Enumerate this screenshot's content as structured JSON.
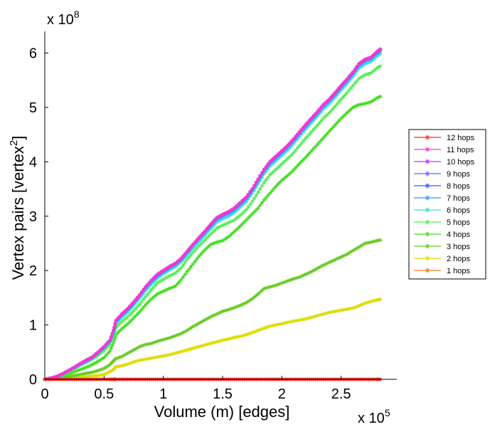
{
  "chart_data": {
    "type": "line",
    "xlabel": "Volume (m) [edges]",
    "ylabel": "Vertex pairs [vertex²]",
    "ylabel_base": "Vertex pairs [vertex",
    "ylabel_sup": "2",
    "ylabel_close": "]",
    "x_multiplier": "x 10",
    "x_multiplier_exp": "5",
    "y_multiplier": "x 10",
    "y_multiplier_exp": "8",
    "xlim": [
      0,
      3.0
    ],
    "ylim": [
      0,
      6.4
    ],
    "x_ticks": [
      0,
      0.5,
      1,
      1.5,
      2,
      2.5
    ],
    "x_tick_labels": [
      "0",
      "0.5",
      "1",
      "1.5",
      "2",
      "2.5"
    ],
    "y_ticks": [
      0,
      1,
      2,
      3,
      4,
      5,
      6
    ],
    "y_tick_labels": [
      "0",
      "1",
      "2",
      "3",
      "4",
      "5",
      "6"
    ],
    "x": [
      0,
      0.05,
      0.1,
      0.15,
      0.2,
      0.25,
      0.3,
      0.35,
      0.4,
      0.45,
      0.5,
      0.55,
      0.58,
      0.6,
      0.65,
      0.7,
      0.75,
      0.8,
      0.85,
      0.9,
      0.95,
      1.0,
      1.05,
      1.1,
      1.15,
      1.2,
      1.25,
      1.3,
      1.35,
      1.4,
      1.45,
      1.5,
      1.55,
      1.6,
      1.65,
      1.7,
      1.75,
      1.8,
      1.85,
      1.9,
      1.95,
      2.0,
      2.05,
      2.1,
      2.15,
      2.2,
      2.25,
      2.3,
      2.35,
      2.4,
      2.45,
      2.5,
      2.55,
      2.6,
      2.65,
      2.7,
      2.75,
      2.8,
      2.83
    ],
    "series": [
      {
        "name": "12 hops",
        "color": "#ff2a2a",
        "values": [
          0,
          0,
          0,
          0,
          0,
          0,
          0,
          0,
          0,
          0,
          0,
          0,
          0,
          0,
          0,
          0,
          0,
          0,
          0,
          0,
          0,
          0,
          0,
          0,
          0,
          0,
          0,
          0,
          0,
          0,
          0,
          0,
          0,
          0,
          0,
          0,
          0,
          0,
          0,
          0,
          0,
          0,
          0,
          0,
          0,
          0,
          0,
          0,
          0,
          0,
          0,
          0,
          0,
          0,
          0,
          0,
          0,
          0,
          0
        ]
      },
      {
        "name": "11 hops",
        "color": "#ff33cc",
        "values": [
          0,
          0.02,
          0.05,
          0.1,
          0.16,
          0.22,
          0.29,
          0.35,
          0.41,
          0.5,
          0.6,
          0.72,
          0.9,
          1.08,
          1.2,
          1.3,
          1.42,
          1.55,
          1.7,
          1.82,
          1.93,
          2.0,
          2.07,
          2.13,
          2.22,
          2.35,
          2.48,
          2.6,
          2.72,
          2.85,
          2.97,
          3.03,
          3.08,
          3.15,
          3.25,
          3.35,
          3.5,
          3.68,
          3.86,
          4.0,
          4.1,
          4.2,
          4.3,
          4.42,
          4.55,
          4.68,
          4.8,
          4.92,
          5.05,
          5.15,
          5.27,
          5.4,
          5.52,
          5.65,
          5.8,
          5.88,
          5.92,
          6.02,
          6.07
        ]
      },
      {
        "name": "10 hops",
        "color": "#bb33ff",
        "values": [
          0,
          0.02,
          0.05,
          0.1,
          0.16,
          0.22,
          0.29,
          0.35,
          0.41,
          0.5,
          0.6,
          0.72,
          0.9,
          1.08,
          1.2,
          1.3,
          1.42,
          1.55,
          1.7,
          1.82,
          1.93,
          2.0,
          2.07,
          2.13,
          2.22,
          2.35,
          2.48,
          2.6,
          2.72,
          2.85,
          2.97,
          3.03,
          3.08,
          3.15,
          3.25,
          3.35,
          3.5,
          3.68,
          3.86,
          4.0,
          4.1,
          4.2,
          4.3,
          4.42,
          4.55,
          4.68,
          4.8,
          4.92,
          5.05,
          5.15,
          5.27,
          5.4,
          5.52,
          5.65,
          5.8,
          5.88,
          5.92,
          6.02,
          6.07
        ]
      },
      {
        "name": "9 hops",
        "color": "#6666ff",
        "values": [
          0,
          0.02,
          0.05,
          0.1,
          0.16,
          0.22,
          0.29,
          0.35,
          0.41,
          0.5,
          0.6,
          0.72,
          0.9,
          1.08,
          1.2,
          1.3,
          1.42,
          1.55,
          1.7,
          1.82,
          1.93,
          2.0,
          2.07,
          2.13,
          2.22,
          2.35,
          2.48,
          2.6,
          2.72,
          2.85,
          2.97,
          3.03,
          3.08,
          3.15,
          3.25,
          3.35,
          3.5,
          3.68,
          3.86,
          4.0,
          4.1,
          4.2,
          4.3,
          4.42,
          4.55,
          4.68,
          4.8,
          4.92,
          5.05,
          5.15,
          5.27,
          5.4,
          5.52,
          5.65,
          5.8,
          5.88,
          5.92,
          6.02,
          6.07
        ]
      },
      {
        "name": "8 hops",
        "color": "#3355ff",
        "values": [
          0,
          0.02,
          0.05,
          0.1,
          0.16,
          0.22,
          0.29,
          0.35,
          0.41,
          0.5,
          0.6,
          0.72,
          0.9,
          1.08,
          1.2,
          1.3,
          1.42,
          1.55,
          1.7,
          1.82,
          1.93,
          2.0,
          2.07,
          2.13,
          2.22,
          2.35,
          2.48,
          2.6,
          2.72,
          2.85,
          2.97,
          3.03,
          3.08,
          3.15,
          3.25,
          3.35,
          3.5,
          3.68,
          3.86,
          4.0,
          4.1,
          4.2,
          4.3,
          4.42,
          4.55,
          4.68,
          4.8,
          4.92,
          5.05,
          5.15,
          5.27,
          5.4,
          5.52,
          5.65,
          5.8,
          5.88,
          5.92,
          6.02,
          6.07
        ]
      },
      {
        "name": "7 hops",
        "color": "#3399ff",
        "values": [
          0,
          0.02,
          0.05,
          0.1,
          0.16,
          0.22,
          0.28,
          0.34,
          0.4,
          0.49,
          0.59,
          0.71,
          0.88,
          1.06,
          1.18,
          1.28,
          1.4,
          1.53,
          1.68,
          1.8,
          1.9,
          1.98,
          2.05,
          2.11,
          2.2,
          2.33,
          2.46,
          2.58,
          2.7,
          2.82,
          2.94,
          3.0,
          3.05,
          3.12,
          3.22,
          3.32,
          3.47,
          3.65,
          3.83,
          3.97,
          4.07,
          4.17,
          4.27,
          4.39,
          4.52,
          4.65,
          4.77,
          4.89,
          5.02,
          5.12,
          5.24,
          5.37,
          5.49,
          5.62,
          5.77,
          5.85,
          5.89,
          5.99,
          6.04
        ]
      },
      {
        "name": "6 hops",
        "color": "#33dddd",
        "values": [
          0,
          0.02,
          0.05,
          0.09,
          0.15,
          0.21,
          0.27,
          0.33,
          0.39,
          0.47,
          0.57,
          0.69,
          0.85,
          1.02,
          1.14,
          1.24,
          1.36,
          1.49,
          1.63,
          1.75,
          1.86,
          1.94,
          2.01,
          2.07,
          2.16,
          2.28,
          2.41,
          2.53,
          2.65,
          2.77,
          2.89,
          2.95,
          3.0,
          3.07,
          3.17,
          3.27,
          3.42,
          3.6,
          3.78,
          3.92,
          4.02,
          4.12,
          4.22,
          4.34,
          4.47,
          4.6,
          4.72,
          4.84,
          4.97,
          5.07,
          5.19,
          5.32,
          5.44,
          5.57,
          5.72,
          5.8,
          5.84,
          5.94,
          5.99
        ]
      },
      {
        "name": "5 hops",
        "color": "#55ee55",
        "values": [
          0,
          0.02,
          0.04,
          0.09,
          0.14,
          0.2,
          0.26,
          0.31,
          0.37,
          0.44,
          0.53,
          0.64,
          0.8,
          0.95,
          1.06,
          1.15,
          1.26,
          1.38,
          1.52,
          1.65,
          1.77,
          1.84,
          1.9,
          1.95,
          2.05,
          2.2,
          2.33,
          2.45,
          2.56,
          2.67,
          2.78,
          2.83,
          2.88,
          2.93,
          3.02,
          3.12,
          3.27,
          3.44,
          3.62,
          3.76,
          3.86,
          3.96,
          4.06,
          4.17,
          4.3,
          4.43,
          4.55,
          4.67,
          4.8,
          4.9,
          5.02,
          5.15,
          5.27,
          5.4,
          5.53,
          5.6,
          5.63,
          5.72,
          5.76
        ]
      },
      {
        "name": "4 hops",
        "color": "#44dd22",
        "values": [
          0,
          0.01,
          0.03,
          0.06,
          0.1,
          0.14,
          0.18,
          0.22,
          0.27,
          0.33,
          0.4,
          0.52,
          0.68,
          0.82,
          0.93,
          1.02,
          1.13,
          1.24,
          1.37,
          1.48,
          1.57,
          1.62,
          1.67,
          1.71,
          1.83,
          1.98,
          2.12,
          2.26,
          2.38,
          2.48,
          2.52,
          2.55,
          2.62,
          2.72,
          2.82,
          2.93,
          3.04,
          3.15,
          3.3,
          3.42,
          3.55,
          3.66,
          3.75,
          3.85,
          3.97,
          4.08,
          4.2,
          4.32,
          4.44,
          4.56,
          4.68,
          4.8,
          4.9,
          5.0,
          5.05,
          5.07,
          5.1,
          5.17,
          5.2
        ]
      },
      {
        "name": "3 hops",
        "color": "#66cc22",
        "values": [
          0,
          0.01,
          0.02,
          0.03,
          0.05,
          0.07,
          0.09,
          0.11,
          0.13,
          0.16,
          0.2,
          0.27,
          0.34,
          0.38,
          0.42,
          0.48,
          0.54,
          0.6,
          0.64,
          0.66,
          0.7,
          0.73,
          0.76,
          0.8,
          0.84,
          0.9,
          0.97,
          1.03,
          1.09,
          1.15,
          1.2,
          1.25,
          1.28,
          1.32,
          1.36,
          1.41,
          1.48,
          1.57,
          1.67,
          1.7,
          1.73,
          1.77,
          1.81,
          1.85,
          1.88,
          1.93,
          1.98,
          2.04,
          2.1,
          2.15,
          2.2,
          2.25,
          2.3,
          2.37,
          2.43,
          2.5,
          2.52,
          2.55,
          2.56
        ]
      },
      {
        "name": "2 hops",
        "color": "#dddd00",
        "values": [
          0,
          0,
          0.01,
          0.01,
          0.02,
          0.03,
          0.04,
          0.05,
          0.06,
          0.07,
          0.09,
          0.14,
          0.18,
          0.23,
          0.25,
          0.28,
          0.32,
          0.35,
          0.37,
          0.39,
          0.41,
          0.43,
          0.45,
          0.48,
          0.51,
          0.54,
          0.57,
          0.6,
          0.63,
          0.66,
          0.69,
          0.72,
          0.74,
          0.77,
          0.79,
          0.82,
          0.86,
          0.9,
          0.94,
          0.98,
          1.0,
          1.02,
          1.05,
          1.07,
          1.09,
          1.11,
          1.14,
          1.17,
          1.2,
          1.23,
          1.25,
          1.27,
          1.29,
          1.31,
          1.35,
          1.4,
          1.43,
          1.46,
          1.47
        ]
      },
      {
        "name": "1 hops",
        "color": "#ff7722",
        "values": [
          0,
          0,
          0,
          0,
          0,
          0,
          0,
          0,
          0,
          0,
          0,
          0,
          0,
          0,
          0,
          0,
          0,
          0,
          0,
          0,
          0,
          0,
          0,
          0,
          0,
          0,
          0,
          0,
          0,
          0,
          0,
          0,
          0,
          0,
          0,
          0,
          0,
          0,
          0,
          0,
          0,
          0,
          0,
          0,
          0,
          0,
          0,
          0,
          0,
          0,
          0,
          0,
          0,
          0,
          0,
          0,
          0,
          0,
          0
        ]
      }
    ],
    "legend_position": "right"
  }
}
